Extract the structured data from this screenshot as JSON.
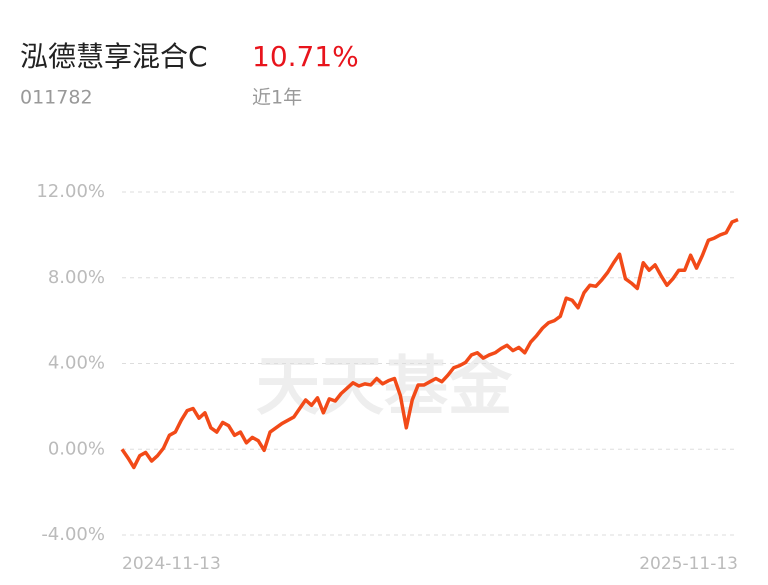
{
  "header": {
    "name": "泓德慧享混合C",
    "return": "10.71%",
    "code": "011782",
    "period": "近1年"
  },
  "watermark": "天天基金",
  "chart_data": {
    "type": "line",
    "categories": [
      "2024-11-13",
      null,
      null,
      null,
      null,
      null,
      null,
      null,
      null,
      null,
      null,
      null,
      null,
      null,
      null,
      null,
      null,
      null,
      null,
      null,
      null,
      null,
      null,
      null,
      null,
      null,
      null,
      null,
      null,
      null,
      null,
      null,
      null,
      null,
      null,
      null,
      null,
      null,
      null,
      null,
      null,
      null,
      null,
      null,
      null,
      null,
      null,
      null,
      null,
      null,
      null,
      null,
      null,
      null,
      null,
      null,
      null,
      null,
      null,
      null,
      null,
      null,
      null,
      null,
      null,
      null,
      null,
      null,
      null,
      null,
      null,
      null,
      null,
      null,
      null,
      null,
      null,
      null,
      null,
      null,
      null,
      null,
      null,
      null,
      null,
      null,
      null,
      null,
      null,
      null,
      null,
      null,
      null,
      null,
      null,
      null,
      null,
      null,
      null,
      null,
      null,
      null,
      null,
      null,
      "2025-11-13"
    ],
    "series": [
      {
        "name": "泓德慧享混合C",
        "color": "#f24a18",
        "values": [
          0,
          -0.4,
          -0.85,
          -0.3,
          -0.15,
          -0.55,
          -0.3,
          0.05,
          0.65,
          0.8,
          1.35,
          1.8,
          1.9,
          1.45,
          1.7,
          1.0,
          0.8,
          1.25,
          1.1,
          0.65,
          0.8,
          0.3,
          0.55,
          0.4,
          -0.05,
          0.8,
          1.0,
          1.2,
          1.35,
          1.5,
          1.9,
          2.3,
          2.05,
          2.4,
          1.7,
          2.35,
          2.25,
          2.6,
          2.85,
          3.1,
          2.95,
          3.05,
          3.0,
          3.3,
          3.05,
          3.2,
          3.3,
          2.5,
          1.0,
          2.3,
          3.0,
          3.0,
          3.15,
          3.3,
          3.15,
          3.45,
          3.8,
          3.9,
          4.05,
          4.4,
          4.5,
          4.25,
          4.4,
          4.5,
          4.7,
          4.85,
          4.6,
          4.75,
          4.5,
          5.0,
          5.3,
          5.65,
          5.9,
          6.0,
          6.2,
          7.05,
          6.95,
          6.6,
          7.3,
          7.65,
          7.6,
          7.9,
          8.25,
          8.7,
          9.1,
          7.95,
          7.75,
          7.5,
          8.7,
          8.35,
          8.6,
          8.1,
          7.65,
          7.95,
          8.35,
          8.35,
          9.05,
          8.45,
          9.05,
          9.75,
          9.85,
          10.0,
          10.1,
          10.6,
          10.71
        ]
      }
    ],
    "ylim": [
      -4,
      12
    ],
    "yticks": [
      {
        "value": -4,
        "label": "-4.00%"
      },
      {
        "value": 0,
        "label": "0.00%"
      },
      {
        "value": 4,
        "label": "4.00%"
      },
      {
        "value": 8,
        "label": "8.00%"
      },
      {
        "value": 12,
        "label": "12.00%"
      }
    ],
    "grid": true
  }
}
